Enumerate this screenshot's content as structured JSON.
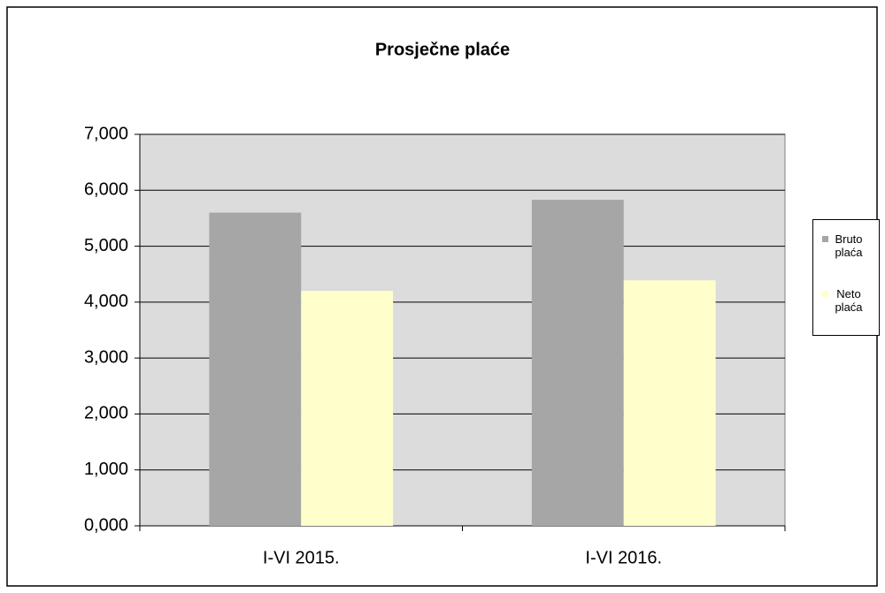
{
  "chart_data": {
    "type": "bar",
    "title": "Prosječne plaće",
    "categories": [
      "I-VI 2015.",
      "I-VI 2016."
    ],
    "series": [
      {
        "name": "Bruto plaća",
        "color": "#a6a6a6",
        "values": [
          5600,
          5830
        ]
      },
      {
        "name": "Neto plaća",
        "color": "#ffffcc",
        "values": [
          4200,
          4390
        ]
      }
    ],
    "ylim": [
      0,
      7000
    ],
    "yticks": [
      {
        "value": 0,
        "label": "0,000"
      },
      {
        "value": 1000,
        "label": "1,000"
      },
      {
        "value": 2000,
        "label": "2,000"
      },
      {
        "value": 3000,
        "label": "3,000"
      },
      {
        "value": 4000,
        "label": "4,000"
      },
      {
        "value": 5000,
        "label": "5,000"
      },
      {
        "value": 6000,
        "label": "6,000"
      },
      {
        "value": 7000,
        "label": "7,000"
      }
    ],
    "grid": true,
    "legend": "right"
  }
}
